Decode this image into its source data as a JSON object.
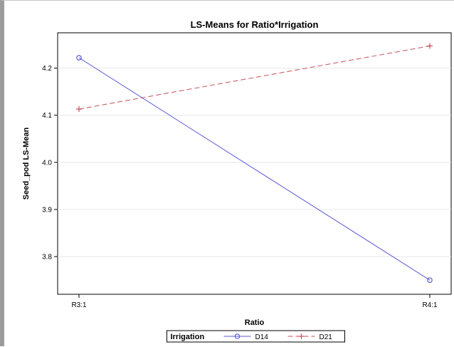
{
  "chart_data": {
    "type": "line",
    "title": "LS-Means for Ratio*Irrigation",
    "xlabel": "Ratio",
    "ylabel": "Seed_pod LS-Mean",
    "categories": [
      "R3:1",
      "R4:1"
    ],
    "ylim": [
      3.72,
      4.275
    ],
    "yticks": [
      3.8,
      3.9,
      4.0,
      4.1,
      4.2
    ],
    "ytick_labels": [
      "3.8",
      "3.9",
      "4.0",
      "4.1",
      "4.2"
    ],
    "grid": "horizontal",
    "legend": {
      "title": "Irrigation",
      "position": "bottom"
    },
    "series": [
      {
        "name": "D14",
        "values": [
          4.222,
          3.75
        ],
        "color": "#5a5ad6",
        "marker": "circle",
        "dash": "solid"
      },
      {
        "name": "D21",
        "values": [
          4.113,
          4.247
        ],
        "color": "#c4505a",
        "marker": "plus",
        "dash": "dashed"
      }
    ]
  }
}
